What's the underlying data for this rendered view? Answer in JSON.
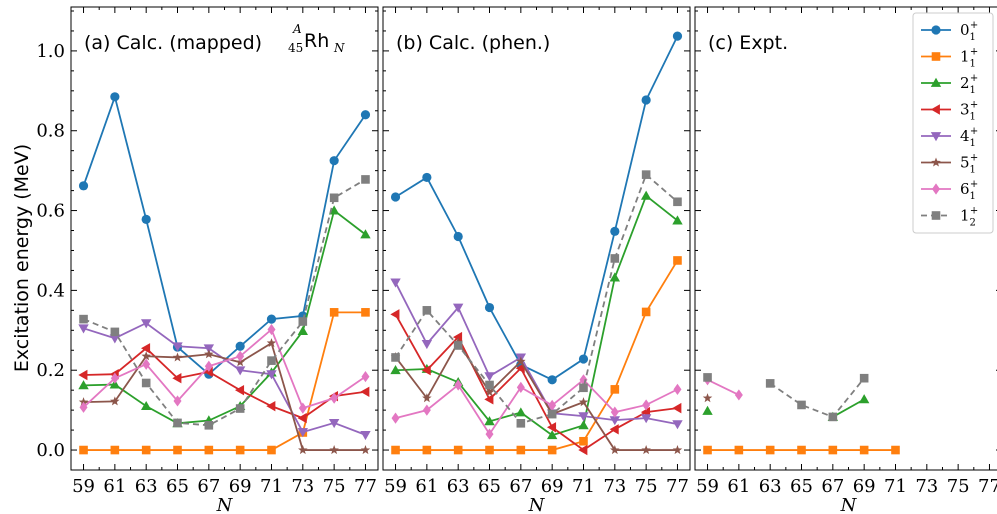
{
  "figure": {
    "ylabel": "Excitation energy (MeV)",
    "nucleus_label": {
      "mass": "A",
      "z": "45",
      "symbol": "Rh",
      "n": "N"
    }
  },
  "legend": [
    {
      "sym": "0",
      "sub": "1",
      "sup": "+",
      "series": "0_1"
    },
    {
      "sym": "1",
      "sub": "1",
      "sup": "+",
      "series": "1_1"
    },
    {
      "sym": "2",
      "sub": "1",
      "sup": "+",
      "series": "2_1"
    },
    {
      "sym": "3",
      "sub": "1",
      "sup": "+",
      "series": "3_1"
    },
    {
      "sym": "4",
      "sub": "1",
      "sup": "+",
      "series": "4_1"
    },
    {
      "sym": "5",
      "sub": "1",
      "sup": "+",
      "series": "5_1"
    },
    {
      "sym": "6",
      "sub": "1",
      "sup": "+",
      "series": "6_1"
    },
    {
      "sym": "1",
      "sub": "2",
      "sup": "+",
      "series": "1_2"
    }
  ],
  "styles": {
    "0_1": {
      "color": "#1f77b4",
      "marker": "circle",
      "dash": false
    },
    "1_1": {
      "color": "#ff7f0e",
      "marker": "square",
      "dash": false
    },
    "2_1": {
      "color": "#2ca02c",
      "marker": "triangle-up",
      "dash": false
    },
    "3_1": {
      "color": "#d62728",
      "marker": "triangle-left",
      "dash": false
    },
    "4_1": {
      "color": "#9467bd",
      "marker": "triangle-down",
      "dash": false
    },
    "5_1": {
      "color": "#8c564b",
      "marker": "star",
      "dash": false
    },
    "6_1": {
      "color": "#e377c2",
      "marker": "diamond",
      "dash": false
    },
    "1_2": {
      "color": "#7f7f7f",
      "marker": "square",
      "dash": true
    }
  },
  "chart_data": [
    {
      "type": "line",
      "panel": "(a) Calc. (mapped)",
      "xlabel": "N",
      "ylabel": "Excitation energy (MeV)",
      "xticks": [
        59,
        61,
        63,
        65,
        67,
        69,
        71,
        73,
        75,
        77
      ],
      "yticks": [
        0.0,
        0.2,
        0.4,
        0.6,
        0.8,
        1.0
      ],
      "ytick_labels": [
        "0.0",
        "0.2",
        "0.4",
        "0.6",
        "0.8",
        "1.0"
      ],
      "xlim": [
        58.2,
        77.8
      ],
      "ylim": [
        -0.05,
        1.11
      ],
      "x": [
        59,
        61,
        63,
        65,
        67,
        69,
        71,
        73,
        75,
        77
      ],
      "series": [
        {
          "name": "0_1",
          "values": [
            0.662,
            0.885,
            0.578,
            0.258,
            0.19,
            0.26,
            0.328,
            0.336,
            0.725,
            0.84
          ]
        },
        {
          "name": "1_1",
          "values": [
            0,
            0,
            0,
            0,
            0,
            0,
            0,
            0.044,
            0.345,
            0.345
          ]
        },
        {
          "name": "2_1",
          "values": [
            0.162,
            0.164,
            0.11,
            0.067,
            0.074,
            0.11,
            0.194,
            0.298,
            0.6,
            0.54
          ]
        },
        {
          "name": "3_1",
          "values": [
            0.188,
            0.19,
            0.255,
            0.18,
            0.196,
            0.15,
            0.11,
            0.08,
            0.135,
            0.146
          ]
        },
        {
          "name": "4_1",
          "values": [
            0.305,
            0.28,
            0.318,
            0.26,
            0.255,
            0.2,
            0.19,
            0.045,
            0.068,
            0.038
          ]
        },
        {
          "name": "5_1",
          "values": [
            0.12,
            0.122,
            0.235,
            0.232,
            0.24,
            0.22,
            0.268,
            0.0,
            0.0,
            0.0
          ]
        },
        {
          "name": "6_1",
          "values": [
            0.107,
            0.18,
            0.215,
            0.123,
            0.21,
            0.235,
            0.302,
            0.105,
            0.13,
            0.184
          ]
        },
        {
          "name": "1_2",
          "values": [
            0.328,
            0.296,
            0.168,
            0.068,
            0.062,
            0.104,
            0.224,
            0.322,
            0.632,
            0.678
          ]
        }
      ]
    },
    {
      "type": "line",
      "panel": "(b) Calc. (phen.)",
      "xlabel": "N",
      "xticks": [
        59,
        61,
        63,
        65,
        67,
        69,
        71,
        73,
        75,
        77
      ],
      "yticks": [
        0.0,
        0.2,
        0.4,
        0.6,
        0.8,
        1.0
      ],
      "xlim": [
        58.2,
        77.8
      ],
      "ylim": [
        -0.05,
        1.11
      ],
      "x": [
        59,
        61,
        63,
        65,
        67,
        69,
        71,
        73,
        75,
        77
      ],
      "series": [
        {
          "name": "0_1",
          "values": [
            0.634,
            0.683,
            0.535,
            0.357,
            0.214,
            0.176,
            0.228,
            0.548,
            0.877,
            1.037
          ]
        },
        {
          "name": "1_1",
          "values": [
            0,
            0,
            0,
            0,
            0,
            0,
            0.022,
            0.152,
            0.346,
            0.475
          ]
        },
        {
          "name": "2_1",
          "values": [
            0.2,
            0.203,
            0.17,
            0.072,
            0.094,
            0.037,
            0.062,
            0.432,
            0.637,
            0.575
          ]
        },
        {
          "name": "3_1",
          "values": [
            0.34,
            0.2,
            0.283,
            0.127,
            0.205,
            0.057,
            0.0,
            0.052,
            0.095,
            0.105
          ]
        },
        {
          "name": "4_1",
          "values": [
            0.42,
            0.266,
            0.357,
            0.185,
            0.232,
            0.092,
            0.085,
            0.075,
            0.08,
            0.065
          ]
        },
        {
          "name": "5_1",
          "values": [
            0.233,
            0.13,
            0.27,
            0.145,
            0.222,
            0.09,
            0.12,
            0.0,
            0.0,
            0.0
          ]
        },
        {
          "name": "6_1",
          "values": [
            0.08,
            0.1,
            0.163,
            0.04,
            0.157,
            0.112,
            0.176,
            0.095,
            0.113,
            0.152
          ]
        },
        {
          "name": "1_2",
          "values": [
            0.232,
            0.35,
            0.262,
            0.163,
            0.067,
            0.09,
            0.156,
            0.48,
            0.69,
            0.622
          ]
        }
      ]
    },
    {
      "type": "line",
      "panel": "(c) Expt.",
      "xlabel": "N",
      "xticks": [
        59,
        61,
        63,
        65,
        67,
        69,
        71,
        73,
        75,
        77
      ],
      "yticks": [
        0.0,
        0.2,
        0.4,
        0.6,
        0.8,
        1.0
      ],
      "xlim": [
        58.2,
        77.8
      ],
      "ylim": [
        -0.05,
        1.11
      ],
      "x": [
        59,
        61,
        63,
        65,
        67,
        69,
        71,
        73,
        75,
        77
      ],
      "series": [
        {
          "name": "0_1",
          "values": [
            null,
            null,
            null,
            null,
            null,
            null,
            null,
            null,
            null,
            null
          ]
        },
        {
          "name": "1_1",
          "values": [
            0,
            0,
            0,
            0,
            0,
            0,
            0,
            null,
            null,
            null
          ]
        },
        {
          "name": "2_1",
          "values": [
            0.098,
            null,
            null,
            null,
            0.083,
            0.127,
            null,
            null,
            null,
            null
          ]
        },
        {
          "name": "3_1",
          "values": [
            null,
            null,
            null,
            null,
            null,
            null,
            null,
            null,
            null,
            null
          ]
        },
        {
          "name": "4_1",
          "values": [
            null,
            null,
            null,
            null,
            null,
            null,
            null,
            null,
            null,
            null
          ]
        },
        {
          "name": "5_1",
          "values": [
            0.13,
            null,
            null,
            null,
            null,
            null,
            null,
            null,
            null,
            null
          ]
        },
        {
          "name": "6_1",
          "values": [
            0.176,
            0.138,
            null,
            null,
            null,
            null,
            null,
            null,
            null,
            null
          ]
        },
        {
          "name": "1_2",
          "values": [
            0.182,
            null,
            0.167,
            0.113,
            0.083,
            0.18,
            null,
            null,
            null,
            null
          ]
        }
      ]
    }
  ]
}
